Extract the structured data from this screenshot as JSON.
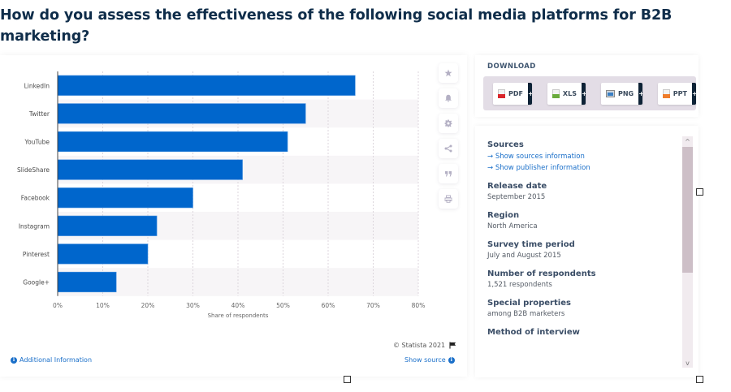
{
  "page": {
    "title": "How do you assess the effectiveness of the following social media platforms for B2B marketing?"
  },
  "chart_data": {
    "type": "bar",
    "orientation": "horizontal",
    "title": "How do you assess the effectiveness of the following social media platforms for B2B marketing?",
    "categories": [
      "LinkedIn",
      "Twitter",
      "YouTube",
      "SlideShare",
      "Facebook",
      "Instagram",
      "Pinterest",
      "Google+"
    ],
    "values": [
      66,
      55,
      51,
      41,
      30,
      22,
      20,
      13
    ],
    "unit": "%",
    "xlabel": "Share of respondents",
    "ylabel": "",
    "xlim": [
      0,
      80
    ],
    "xticks": [
      0,
      10,
      20,
      30,
      40,
      50,
      60,
      70,
      80
    ],
    "xtick_labels": [
      "0%",
      "10%",
      "20%",
      "30%",
      "40%",
      "50%",
      "60%",
      "70%",
      "80%"
    ],
    "grid": true,
    "legend": "none",
    "bar_color": "#0066cc"
  },
  "chart_footer": {
    "copyright": "© Statista 2021",
    "additional_info": "Additional Information",
    "show_source": "Show source"
  },
  "toolbar": {
    "items": [
      {
        "name": "favorite",
        "icon": "star-icon"
      },
      {
        "name": "notification",
        "icon": "bell-icon"
      },
      {
        "name": "settings",
        "icon": "gear-icon"
      },
      {
        "name": "share",
        "icon": "share-icon"
      },
      {
        "name": "cite",
        "icon": "quote-icon"
      },
      {
        "name": "print",
        "icon": "printer-icon"
      }
    ]
  },
  "download": {
    "title": "DOWNLOAD",
    "buttons": [
      {
        "label": "PDF",
        "color": "#d9262c",
        "plus": "+"
      },
      {
        "label": "XLS",
        "color": "#6aab3c",
        "plus": "+"
      },
      {
        "label": "PNG",
        "color": "#3a7fc4",
        "plus": "+"
      },
      {
        "label": "PPT",
        "color": "#ef7d2c",
        "plus": "+"
      }
    ]
  },
  "info": {
    "sources_label": "Sources",
    "sources_link": "Show sources information",
    "publisher_link": "Show publisher information",
    "arrow": "→",
    "release_label": "Release date",
    "release_value": "September 2015",
    "region_label": "Region",
    "region_value": "North America",
    "survey_label": "Survey time period",
    "survey_value": "July and August 2015",
    "respondents_label": "Number of respondents",
    "respondents_value": "1,521 respondents",
    "special_label": "Special properties",
    "special_value": "among B2B marketers",
    "method_label": "Method of interview"
  },
  "scrollbar": {
    "up": "^",
    "down": "v"
  }
}
